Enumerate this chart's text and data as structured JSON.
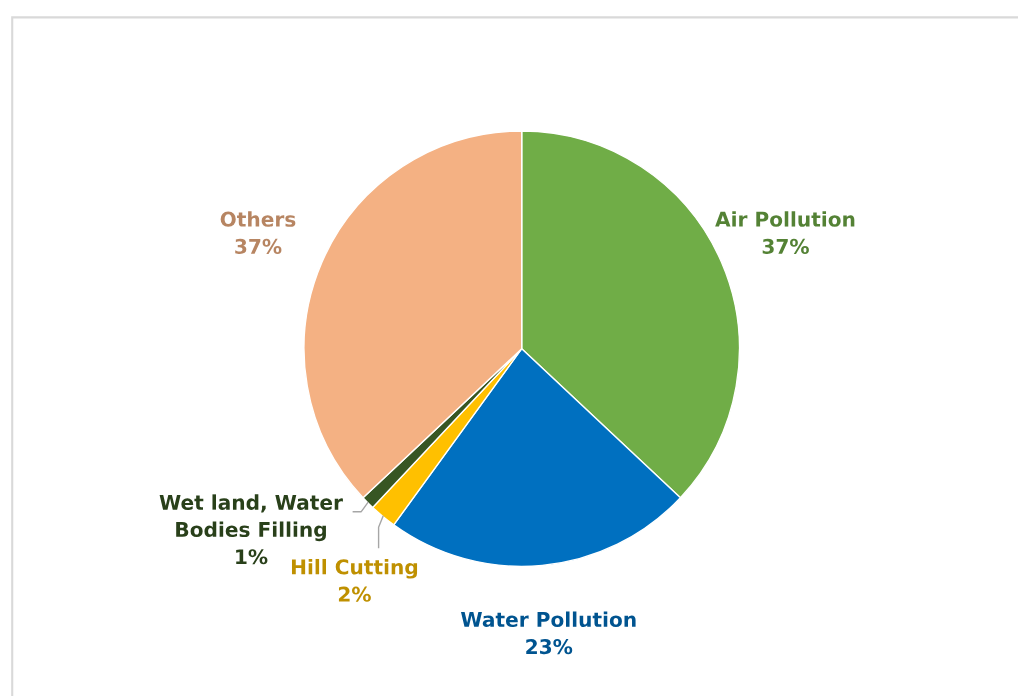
{
  "chart_data": {
    "type": "pie",
    "categories": [
      "Air Pollution",
      "Water Pollution",
      "Hill Cutting",
      "Wet land, Water\nBodies Filling",
      "Others"
    ],
    "values": [
      37,
      23,
      2,
      1,
      37
    ],
    "colors": [
      "#70ad47",
      "#0070c0",
      "#ffc000",
      "#375623",
      "#f4b183"
    ],
    "value_labels": [
      "37%",
      "23%",
      "2%",
      "1%",
      "37%"
    ]
  }
}
